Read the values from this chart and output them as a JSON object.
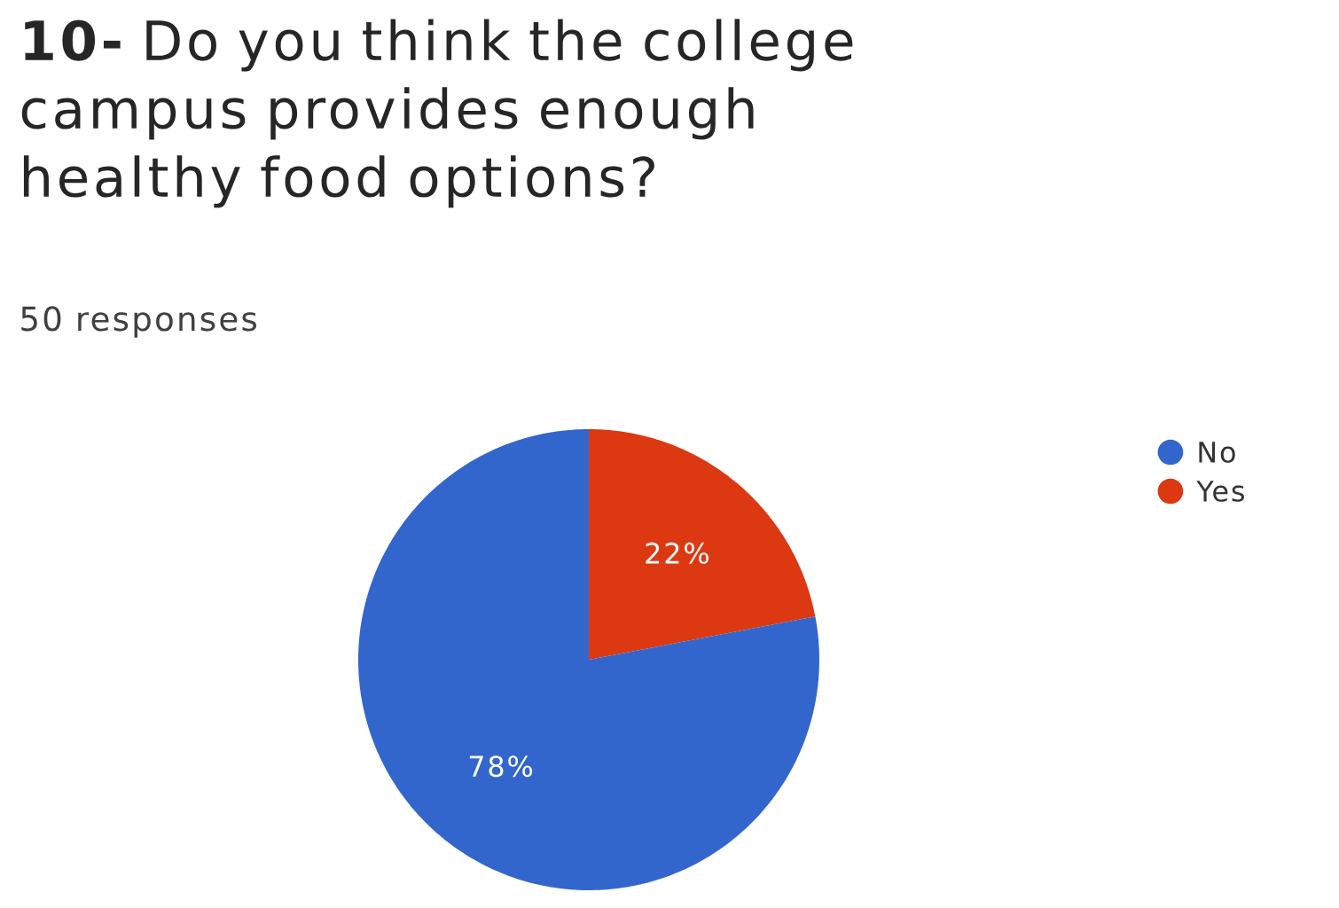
{
  "chart_data": {
    "type": "pie",
    "title": "**10-** Do you think the college campus provides enough healthy food options?",
    "subtitle": "50 responses",
    "categories": [
      "No",
      "Yes"
    ],
    "values": [
      78,
      22
    ],
    "colors": [
      "#3366cc",
      "#dc3912"
    ],
    "value_labels": [
      "78%",
      "22%"
    ],
    "legend": "top right"
  }
}
